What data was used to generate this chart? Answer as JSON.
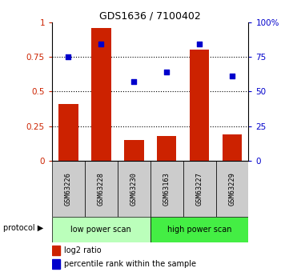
{
  "title": "GDS1636 / 7100402",
  "categories": [
    "GSM63226",
    "GSM63228",
    "GSM63230",
    "GSM63163",
    "GSM63227",
    "GSM63229"
  ],
  "bar_values": [
    0.41,
    0.96,
    0.15,
    0.18,
    0.8,
    0.19
  ],
  "scatter_values": [
    0.75,
    0.84,
    0.57,
    0.64,
    0.84,
    0.61
  ],
  "bar_color": "#cc2200",
  "scatter_color": "#0000cc",
  "ylim_left": [
    0,
    1.0
  ],
  "ylim_right": [
    0,
    100
  ],
  "yticks_left": [
    0,
    0.25,
    0.5,
    0.75,
    1.0
  ],
  "ytick_labels_left": [
    "0",
    "0.25",
    "0.5",
    "0.75",
    "1"
  ],
  "yticks_right": [
    0,
    25,
    50,
    75,
    100
  ],
  "ytick_labels_right": [
    "0",
    "25",
    "50",
    "75",
    "100%"
  ],
  "protocol_labels": [
    "low power scan",
    "high power scan"
  ],
  "protocol_colors": [
    "#bbffbb",
    "#44ee44"
  ],
  "group_bg_color": "#cccccc",
  "legend_bar_label": "log2 ratio",
  "legend_scatter_label": "percentile rank within the sample",
  "protocol_text": "protocol ▶"
}
